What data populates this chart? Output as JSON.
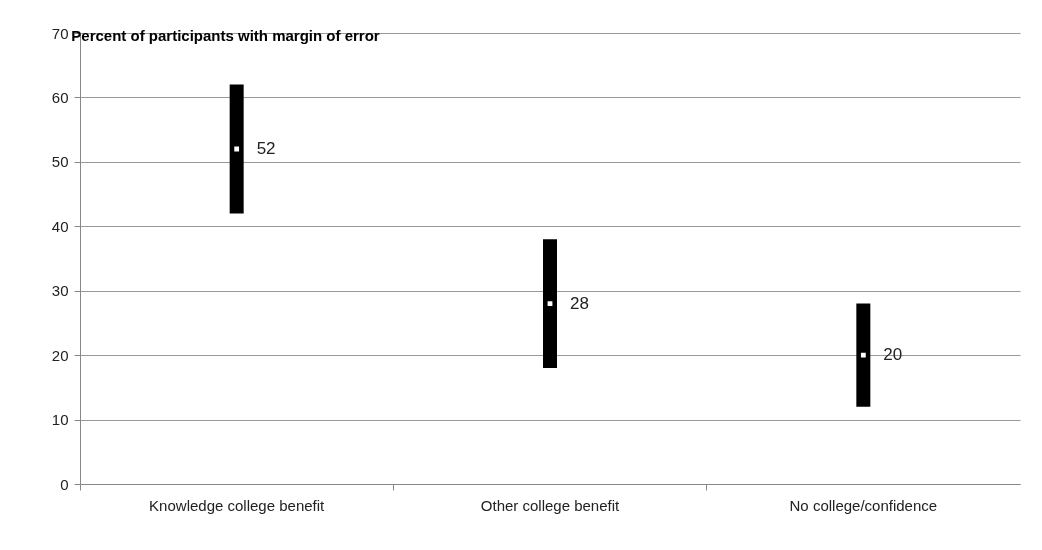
{
  "chart_data": {
    "type": "scatter",
    "title": "Percent of participants with margin of error",
    "categories": [
      "Knowledge college benefit",
      "Other college benefit",
      "No college/confidence"
    ],
    "values": [
      52,
      28,
      20
    ],
    "errors": [
      [
        42,
        62
      ],
      [
        18,
        38
      ],
      [
        12,
        28
      ]
    ],
    "color": "#000000",
    "data_labels": true,
    "marker": "square",
    "grid": "y",
    "ylim": [
      0,
      70
    ],
    "yticks": [
      0,
      10,
      20,
      30,
      40,
      50,
      60,
      70
    ]
  }
}
